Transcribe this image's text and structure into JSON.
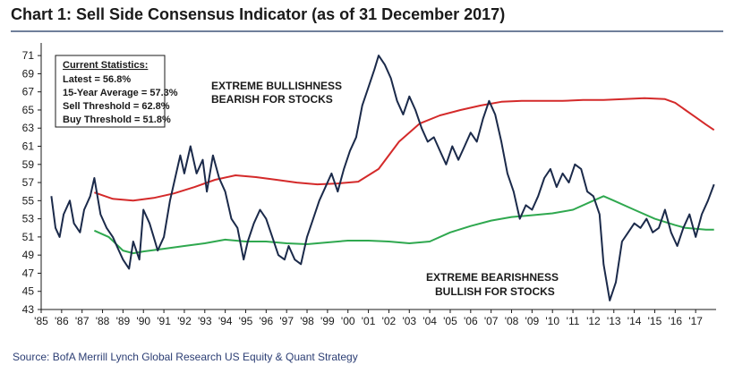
{
  "title": "Chart 1: Sell Side Consensus Indicator (as of 31 December 2017)",
  "source": "Source: BofA Merrill Lynch Global Research US Equity & Quant Strategy",
  "stats_box": {
    "heading": "Current Statistics:",
    "lines": [
      "Latest = 56.8%",
      "15-Year Average = 57.3%",
      "Sell Threshold = 62.8%",
      "Buy Threshold = 51.8%"
    ]
  },
  "annotations": {
    "top": [
      "EXTREME BULLISHNESS",
      "BEARISH FOR STOCKS"
    ],
    "bottom": [
      "EXTREME BEARISHNESS",
      "BULLISH FOR STOCKS"
    ]
  },
  "colors": {
    "indicator": "#1b2a4a",
    "sell_threshold": "#d42a2a",
    "buy_threshold": "#2fa84f"
  },
  "chart_data": {
    "type": "line",
    "title": "Chart 1: Sell Side Consensus Indicator (as of 31 December 2017)",
    "xlabel": "",
    "ylabel": "",
    "xlim": [
      1985,
      2018
    ],
    "ylim": [
      43,
      72
    ],
    "yticks": [
      43,
      45,
      47,
      49,
      51,
      53,
      55,
      57,
      59,
      61,
      63,
      65,
      67,
      69,
      71
    ],
    "xtick_labels": [
      "'85",
      "'86",
      "'87",
      "'88",
      "'89",
      "'90",
      "'91",
      "'92",
      "'93",
      "'94",
      "'95",
      "'96",
      "'97",
      "'98",
      "'99",
      "'00",
      "'01",
      "'02",
      "'03",
      "'04",
      "'05",
      "'06",
      "'07",
      "'08",
      "'09",
      "'10",
      "'11",
      "'12",
      "'13",
      "'14",
      "'15",
      "'16",
      "'17"
    ],
    "grid": false,
    "legend": "none",
    "series": [
      {
        "color": "#1b2a4a",
        "x": [
          1985.5,
          1985.7,
          1985.9,
          1986.1,
          1986.4,
          1986.6,
          1986.9,
          1987.1,
          1987.4,
          1987.6,
          1987.9,
          1988.2,
          1988.5,
          1988.8,
          1989.0,
          1989.3,
          1989.5,
          1989.8,
          1990.0,
          1990.3,
          1990.5,
          1990.7,
          1991.0,
          1991.3,
          1991.5,
          1991.8,
          1992.0,
          1992.3,
          1992.6,
          1992.9,
          1993.1,
          1993.4,
          1993.7,
          1994.0,
          1994.3,
          1994.6,
          1994.9,
          1995.1,
          1995.4,
          1995.7,
          1996.0,
          1996.3,
          1996.6,
          1996.9,
          1997.1,
          1997.4,
          1997.7,
          1998.0,
          1998.3,
          1998.6,
          1998.9,
          1999.2,
          1999.5,
          1999.8,
          2000.1,
          2000.4,
          2000.7,
          2001.0,
          2001.3,
          2001.5,
          2001.8,
          2002.1,
          2002.4,
          2002.7,
          2003.0,
          2003.3,
          2003.6,
          2003.9,
          2004.2,
          2004.5,
          2004.8,
          2005.1,
          2005.4,
          2005.7,
          2006.0,
          2006.3,
          2006.6,
          2006.9,
          2007.2,
          2007.5,
          2007.8,
          2008.1,
          2008.4,
          2008.7,
          2009.0,
          2009.3,
          2009.6,
          2009.9,
          2010.2,
          2010.5,
          2010.8,
          2011.1,
          2011.4,
          2011.7,
          2012.0,
          2012.3,
          2012.5,
          2012.8,
          2013.1,
          2013.4,
          2013.7,
          2014.0,
          2014.3,
          2014.6,
          2014.9,
          2015.2,
          2015.5,
          2015.8,
          2016.1,
          2016.4,
          2016.7,
          2017.0,
          2017.3,
          2017.6,
          2017.9
        ],
        "values": [
          55.5,
          52.0,
          51.0,
          53.5,
          55.0,
          52.5,
          51.5,
          54.0,
          55.5,
          57.5,
          53.5,
          52.0,
          51.0,
          49.5,
          48.5,
          47.5,
          50.5,
          48.5,
          54.0,
          52.5,
          51.0,
          49.5,
          51.0,
          55.0,
          57.0,
          60.0,
          58.0,
          61.0,
          58.0,
          59.5,
          56.0,
          60.0,
          57.5,
          56.0,
          53.0,
          52.0,
          48.5,
          50.5,
          52.5,
          54.0,
          53.0,
          51.0,
          49.0,
          48.5,
          50.0,
          48.5,
          48.0,
          51.0,
          53.0,
          55.0,
          56.5,
          58.0,
          56.0,
          58.5,
          60.5,
          62.0,
          65.5,
          67.5,
          69.5,
          71.0,
          70.0,
          68.5,
          66.0,
          64.5,
          66.5,
          65.0,
          63.0,
          61.5,
          62.0,
          60.5,
          59.0,
          61.0,
          59.5,
          61.0,
          62.5,
          61.5,
          64.0,
          66.0,
          64.5,
          61.5,
          58.0,
          56.0,
          53.0,
          54.5,
          54.0,
          55.5,
          57.5,
          58.5,
          56.5,
          58.0,
          57.0,
          59.0,
          58.5,
          56.0,
          55.5,
          53.5,
          48.0,
          44.0,
          46.0,
          50.5,
          51.5,
          52.5,
          52.0,
          53.0,
          51.5,
          52.0,
          54.0,
          51.5,
          50.0,
          52.0,
          53.5,
          51.0,
          53.5,
          55.0,
          56.8
        ]
      },
      {
        "color": "#d42a2a",
        "x": [
          1987.6,
          1988.5,
          1989.5,
          1990.5,
          1991.5,
          1992.5,
          1993.5,
          1994.5,
          1995.5,
          1996.5,
          1997.5,
          1998.5,
          1999.5,
          2000.5,
          2001.5,
          2002.5,
          2003.5,
          2004.5,
          2005.5,
          2006.5,
          2007.5,
          2008.5,
          2009.5,
          2010.5,
          2011.5,
          2012.5,
          2013.5,
          2014.5,
          2015.5,
          2016.0,
          2016.5,
          2017.0,
          2017.5,
          2017.9
        ],
        "values": [
          55.9,
          55.2,
          55.0,
          55.3,
          55.8,
          56.5,
          57.3,
          57.8,
          57.6,
          57.3,
          57.0,
          56.8,
          56.9,
          57.1,
          58.5,
          61.5,
          63.5,
          64.4,
          65.0,
          65.5,
          65.9,
          66.0,
          66.0,
          66.0,
          66.1,
          66.1,
          66.2,
          66.3,
          66.2,
          65.8,
          65.0,
          64.2,
          63.4,
          62.8
        ]
      },
      {
        "color": "#2fa84f",
        "x": [
          1987.6,
          1988.3,
          1989.0,
          1989.5,
          1990.0,
          1991.0,
          1992.0,
          1993.0,
          1994.0,
          1995.0,
          1996.0,
          1997.0,
          1998.0,
          1999.0,
          2000.0,
          2001.0,
          2002.0,
          2003.0,
          2004.0,
          2005.0,
          2006.0,
          2007.0,
          2008.0,
          2009.0,
          2010.0,
          2011.0,
          2012.0,
          2012.5,
          2013.0,
          2014.0,
          2015.0,
          2016.0,
          2016.5,
          2017.0,
          2017.5,
          2017.9
        ],
        "values": [
          51.7,
          51.0,
          49.5,
          49.2,
          49.4,
          49.7,
          50.0,
          50.3,
          50.7,
          50.5,
          50.5,
          50.3,
          50.2,
          50.4,
          50.6,
          50.6,
          50.5,
          50.3,
          50.5,
          51.5,
          52.2,
          52.8,
          53.2,
          53.4,
          53.6,
          54.0,
          55.0,
          55.5,
          55.0,
          54.0,
          53.0,
          52.3,
          52.0,
          51.9,
          51.8,
          51.8
        ]
      }
    ]
  }
}
